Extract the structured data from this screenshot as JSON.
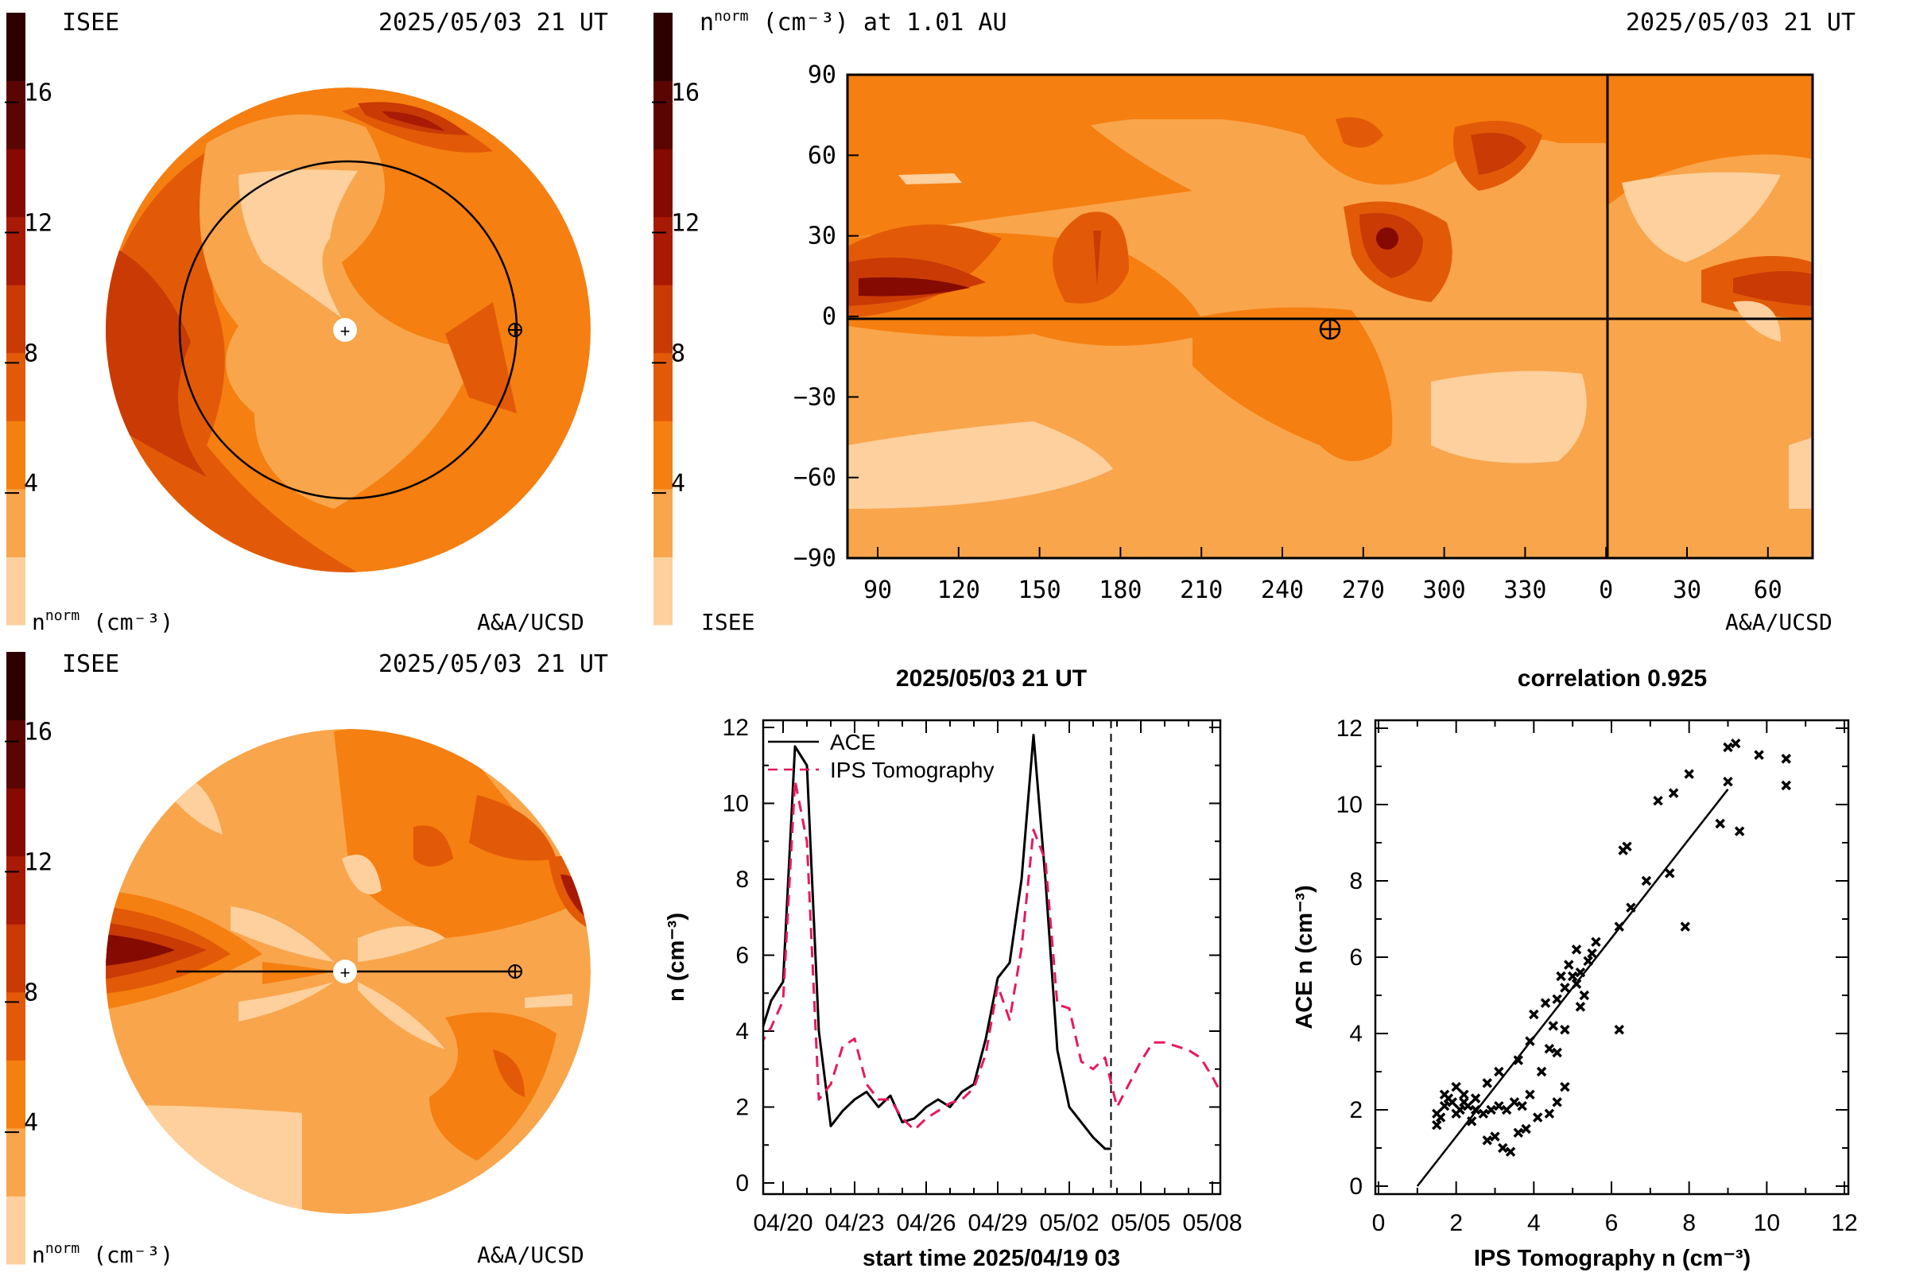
{
  "colors": {
    "scale": [
      "#fdd09d",
      "#f9a54b",
      "#f57f10",
      "#e25a07",
      "#c93a05",
      "#a81a03",
      "#850a02",
      "#5a0501",
      "#2d0100"
    ],
    "tomography": "#e8195a",
    "ace": "#000000"
  },
  "colorbar": {
    "ticks": [
      "4",
      "8",
      "12",
      "16"
    ],
    "unit_label": "(cm⁻³)",
    "unit_label_main": "n",
    "unit_label_sup": "norm"
  },
  "panel_top_left": {
    "left_label": "ISEE",
    "date_label": "2025/05/03 21 UT",
    "bottom_left": "n",
    "bottom_left_sup": "norm",
    "bottom_left_unit": "(cm⁻³)",
    "bottom_right": "A&A/UCSD"
  },
  "panel_top_right": {
    "title_main": "n",
    "title_sup": "norm",
    "title_rest": "(cm⁻³) at 1.01 AU",
    "date_label": "2025/05/03 21 UT",
    "bottom_left": "ISEE",
    "bottom_right": "A&A/UCSD",
    "y_ticks": [
      "90",
      "60",
      "30",
      "0",
      "−30",
      "−60",
      "−90"
    ],
    "x_ticks": [
      "90",
      "120",
      "150",
      "180",
      "210",
      "240",
      "270",
      "300",
      "330",
      "0",
      "30",
      "60"
    ]
  },
  "panel_bottom_left": {
    "left_label": "ISEE",
    "date_label": "2025/05/03 21 UT",
    "bottom_left": "n",
    "bottom_left_sup": "norm",
    "bottom_left_unit": "(cm⁻³)",
    "bottom_right": "A&A/UCSD"
  },
  "chart_data": [
    {
      "type": "line",
      "title": "2025/05/03 21 UT",
      "xlabel": "start time 2025/04/19 03",
      "ylabel": "n (cm⁻³)",
      "ylim": [
        0,
        12
      ],
      "xlim_days": [
        0,
        19.7
      ],
      "x_tick_labels": [
        "04/20",
        "04/23",
        "04/26",
        "04/29",
        "05/02",
        "05/05",
        "05/08"
      ],
      "y_tick_labels": [
        "0",
        "2",
        "4",
        "6",
        "8",
        "10",
        "12"
      ],
      "current_time_marker": "05/03 21",
      "series": [
        {
          "name": "ACE",
          "x": [
            "04/19 03",
            "04/19 15",
            "04/20 03",
            "04/20 15",
            "04/21 03",
            "04/21 15",
            "04/22 03",
            "04/22 15",
            "04/23 03",
            "04/23 15",
            "04/24 03",
            "04/24 15",
            "04/25 03",
            "04/25 15",
            "04/26 03",
            "04/26 15",
            "04/27 03",
            "04/27 15",
            "04/28 03",
            "04/28 15",
            "04/29 03",
            "04/29 15",
            "04/30 03",
            "04/30 15",
            "05/01 03",
            "05/01 15",
            "05/02 03",
            "05/02 15",
            "05/03 03",
            "05/03 15",
            "05/03 21"
          ],
          "values": [
            3.8,
            4.8,
            5.3,
            11.5,
            11.0,
            4.0,
            1.5,
            1.9,
            2.2,
            2.4,
            2.0,
            2.3,
            1.6,
            1.7,
            2.0,
            2.2,
            2.0,
            2.4,
            2.6,
            3.8,
            5.4,
            5.8,
            8.0,
            11.8,
            8.0,
            3.5,
            2.0,
            1.6,
            1.2,
            0.9,
            0.9
          ]
        },
        {
          "name": "IPS Tomography",
          "x": [
            "04/19 03",
            "04/19 15",
            "04/20 03",
            "04/20 15",
            "04/21 03",
            "04/21 15",
            "04/22 03",
            "04/22 15",
            "04/23 03",
            "04/23 15",
            "04/24 03",
            "04/24 15",
            "04/25 03",
            "04/25 15",
            "04/26 03",
            "04/26 15",
            "04/27 03",
            "04/27 15",
            "04/28 03",
            "04/28 15",
            "04/29 03",
            "04/29 15",
            "04/30 03",
            "04/30 15",
            "05/01 03",
            "05/01 15",
            "05/02 03",
            "05/02 15",
            "05/03 03",
            "05/03 15",
            "05/04 03",
            "05/04 15",
            "05/05 03",
            "05/05 15",
            "05/06 03",
            "05/06 15",
            "05/07 03",
            "05/07 15",
            "05/08 03",
            "05/08 15"
          ],
          "values": [
            3.6,
            4.1,
            4.8,
            10.6,
            9.0,
            2.2,
            2.6,
            3.6,
            3.8,
            2.6,
            2.2,
            2.2,
            1.7,
            1.4,
            1.7,
            1.9,
            2.1,
            2.2,
            2.5,
            3.4,
            5.2,
            4.3,
            6.2,
            9.3,
            8.5,
            4.7,
            4.6,
            3.2,
            3.0,
            3.3,
            2.0,
            2.6,
            3.2,
            3.7,
            3.7,
            3.6,
            3.5,
            3.3,
            2.8,
            2.2
          ]
        }
      ]
    },
    {
      "type": "scatter",
      "title": "correlation 0.925",
      "xlabel": "IPS Tomography n (cm⁻³)",
      "ylabel": "ACE n (cm⁻³)",
      "xlim": [
        0,
        12
      ],
      "ylim": [
        0,
        12
      ],
      "x_tick_labels": [
        "0",
        "2",
        "4",
        "6",
        "8",
        "10",
        "12"
      ],
      "y_tick_labels": [
        "0",
        "2",
        "4",
        "6",
        "8",
        "10",
        "12"
      ],
      "fit_line": {
        "x": [
          1.0,
          9.0
        ],
        "y": [
          0.0,
          10.4
        ]
      },
      "points": [
        [
          1.5,
          1.6
        ],
        [
          1.6,
          1.8
        ],
        [
          1.7,
          2.1
        ],
        [
          1.8,
          2.3
        ],
        [
          1.9,
          2.2
        ],
        [
          2.0,
          1.9
        ],
        [
          2.1,
          2.0
        ],
        [
          2.2,
          2.4
        ],
        [
          2.3,
          2.1
        ],
        [
          2.4,
          1.7
        ],
        [
          1.5,
          1.9
        ],
        [
          1.7,
          2.4
        ],
        [
          2.0,
          2.6
        ],
        [
          2.2,
          2.2
        ],
        [
          2.5,
          2.0
        ],
        [
          2.7,
          1.9
        ],
        [
          2.9,
          2.0
        ],
        [
          3.1,
          2.1
        ],
        [
          3.3,
          2.0
        ],
        [
          3.5,
          2.2
        ],
        [
          3.7,
          2.1
        ],
        [
          3.9,
          2.4
        ],
        [
          2.8,
          1.2
        ],
        [
          3.0,
          1.3
        ],
        [
          3.2,
          1.0
        ],
        [
          3.4,
          0.9
        ],
        [
          3.6,
          1.4
        ],
        [
          3.8,
          1.5
        ],
        [
          4.1,
          1.8
        ],
        [
          4.4,
          1.9
        ],
        [
          4.6,
          2.2
        ],
        [
          4.8,
          2.6
        ],
        [
          4.2,
          3.0
        ],
        [
          4.5,
          4.2
        ],
        [
          4.6,
          4.9
        ],
        [
          4.7,
          5.5
        ],
        [
          4.8,
          5.2
        ],
        [
          4.9,
          5.8
        ],
        [
          5.1,
          5.3
        ],
        [
          5.2,
          5.6
        ],
        [
          5.3,
          5.0
        ],
        [
          5.4,
          5.9
        ],
        [
          5.5,
          6.1
        ],
        [
          5.1,
          6.2
        ],
        [
          4.6,
          3.5
        ],
        [
          4.4,
          3.6
        ],
        [
          4.8,
          4.1
        ],
        [
          3.9,
          3.8
        ],
        [
          3.6,
          3.3
        ],
        [
          3.1,
          3.0
        ],
        [
          2.8,
          2.7
        ],
        [
          2.5,
          2.3
        ],
        [
          6.3,
          8.8
        ],
        [
          6.2,
          6.8
        ],
        [
          6.5,
          7.3
        ],
        [
          6.4,
          8.9
        ],
        [
          6.9,
          8.0
        ],
        [
          7.5,
          8.2
        ],
        [
          7.2,
          10.1
        ],
        [
          7.6,
          10.3
        ],
        [
          8.0,
          10.8
        ],
        [
          7.9,
          6.8
        ],
        [
          8.8,
          9.5
        ],
        [
          9.0,
          10.6
        ],
        [
          9.3,
          9.3
        ],
        [
          9.0,
          11.5
        ],
        [
          9.2,
          11.6
        ],
        [
          9.8,
          11.3
        ],
        [
          10.5,
          11.2
        ],
        [
          10.5,
          10.5
        ],
        [
          6.2,
          4.1
        ],
        [
          5.6,
          6.4
        ],
        [
          5.0,
          5.5
        ],
        [
          5.2,
          4.7
        ],
        [
          4.3,
          4.8
        ],
        [
          4.0,
          4.5
        ]
      ]
    }
  ]
}
